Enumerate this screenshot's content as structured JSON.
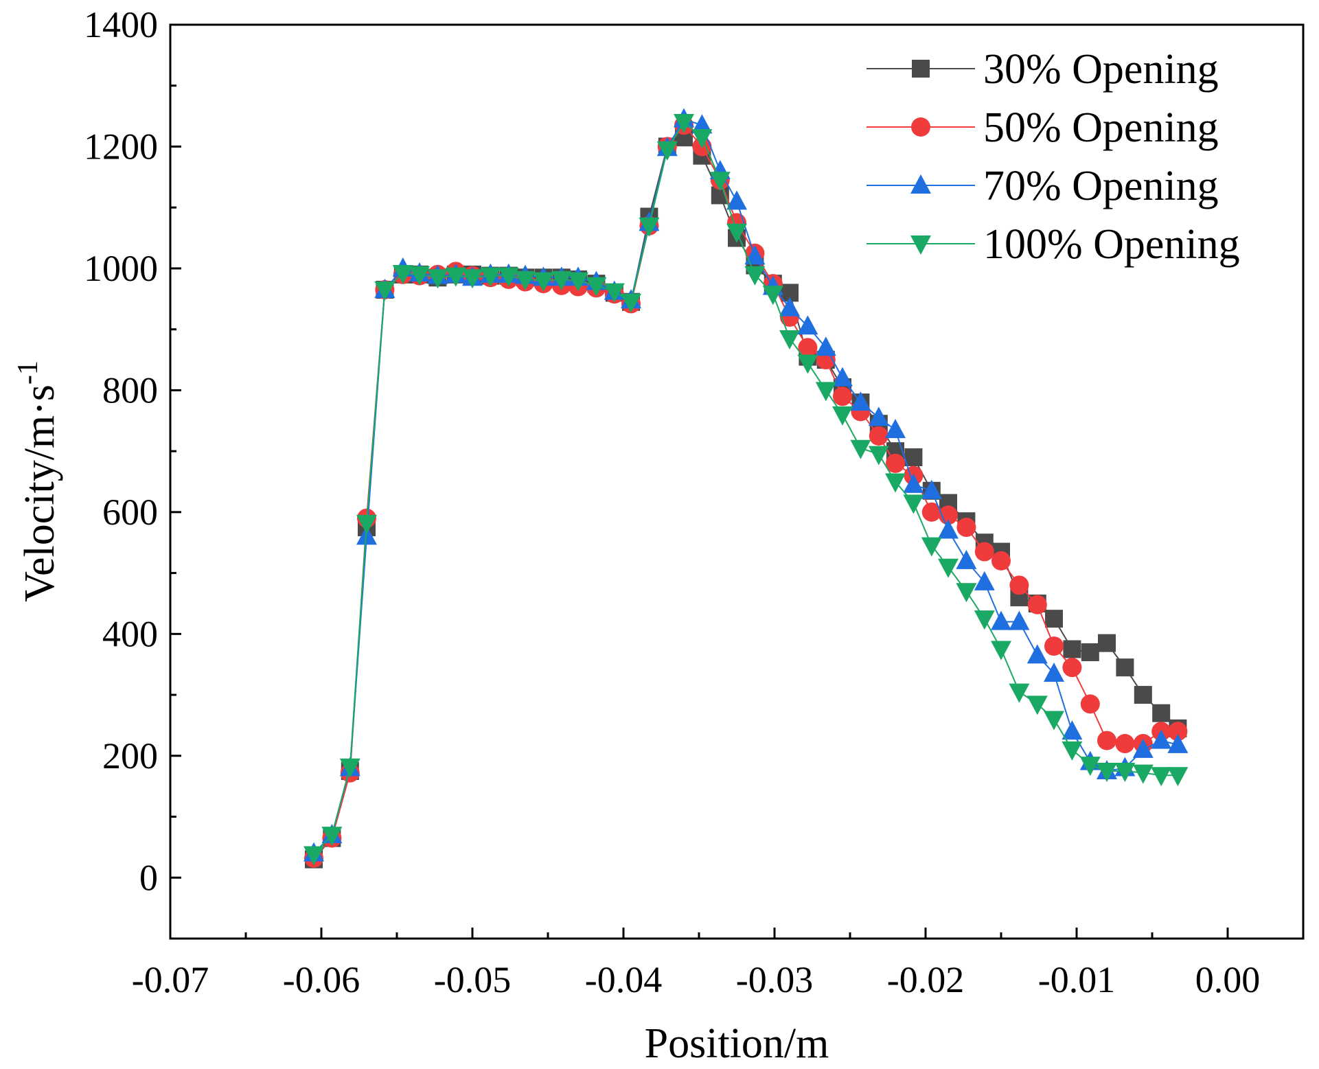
{
  "chart_data": {
    "type": "line",
    "title": "",
    "xlabel": "Position/m",
    "ylabel_main": "Velocity/m·s",
    "ylabel_sup": "-1",
    "xlim": [
      -0.07,
      0.005
    ],
    "ylim": [
      -100,
      1400
    ],
    "xticks": [
      -0.07,
      -0.06,
      -0.05,
      -0.04,
      -0.03,
      -0.02,
      -0.01,
      0.0
    ],
    "xtick_labels": [
      "-0.07",
      "-0.06",
      "-0.05",
      "-0.04",
      "-0.03",
      "-0.02",
      "-0.01",
      "0.00"
    ],
    "yticks": [
      0,
      200,
      400,
      600,
      800,
      1000,
      1200,
      1400
    ],
    "ytick_labels": [
      "0",
      "200",
      "400",
      "600",
      "800",
      "1000",
      "1200",
      "1400"
    ],
    "legend_position": "top-right",
    "x": [
      -0.0605,
      -0.0593,
      -0.0581,
      -0.057,
      -0.0558,
      -0.0546,
      -0.0535,
      -0.0523,
      -0.0511,
      -0.05,
      -0.0488,
      -0.0476,
      -0.0465,
      -0.0453,
      -0.0441,
      -0.043,
      -0.0418,
      -0.0406,
      -0.0395,
      -0.0383,
      -0.0371,
      -0.036,
      -0.0348,
      -0.0336,
      -0.0325,
      -0.0313,
      -0.0301,
      -0.029,
      -0.0278,
      -0.0266,
      -0.0255,
      -0.0243,
      -0.0231,
      -0.022,
      -0.0208,
      -0.0196,
      -0.0185,
      -0.0173,
      -0.0161,
      -0.015,
      -0.0138,
      -0.0126,
      -0.0115,
      -0.0103,
      -0.0091,
      -0.008,
      -0.0068,
      -0.0056,
      -0.0044,
      -0.0033
    ],
    "series": [
      {
        "name": "30% Opening",
        "color": "#4a4a4a",
        "marker": "square",
        "values": [
          30,
          65,
          175,
          575,
          965,
          990,
          990,
          985,
          990,
          990,
          988,
          988,
          985,
          985,
          985,
          982,
          975,
          960,
          945,
          1085,
          1200,
          1215,
          1185,
          1120,
          1050,
          1005,
          975,
          960,
          855,
          850,
          805,
          780,
          745,
          700,
          690,
          635,
          615,
          585,
          550,
          535,
          460,
          450,
          425,
          375,
          370,
          385,
          345,
          300,
          270,
          245
        ]
      },
      {
        "name": "50% Opening",
        "color": "#ef3b3b",
        "marker": "circle",
        "values": [
          32,
          65,
          172,
          590,
          965,
          990,
          988,
          990,
          995,
          988,
          985,
          982,
          978,
          975,
          972,
          970,
          968,
          958,
          942,
          1070,
          1200,
          1235,
          1200,
          1145,
          1075,
          1025,
          975,
          920,
          870,
          850,
          790,
          765,
          725,
          680,
          660,
          600,
          595,
          575,
          535,
          520,
          480,
          448,
          380,
          345,
          285,
          225,
          220,
          220,
          240,
          240
        ]
      },
      {
        "name": "70% Opening",
        "color": "#1f6fe0",
        "marker": "triangle-up",
        "values": [
          40,
          70,
          180,
          560,
          965,
          1000,
          992,
          988,
          990,
          985,
          990,
          990,
          988,
          985,
          985,
          985,
          978,
          962,
          948,
          1075,
          1198,
          1245,
          1235,
          1160,
          1110,
          1020,
          970,
          935,
          905,
          870,
          820,
          780,
          755,
          735,
          645,
          635,
          570,
          520,
          485,
          420,
          420,
          365,
          335,
          240,
          190,
          175,
          180,
          210,
          225,
          218
        ]
      },
      {
        "name": "100% Opening",
        "color": "#1aa964",
        "marker": "triangle-down",
        "values": [
          38,
          70,
          182,
          582,
          965,
          992,
          990,
          985,
          988,
          985,
          988,
          988,
          982,
          980,
          982,
          980,
          972,
          962,
          945,
          1070,
          1195,
          1240,
          1215,
          1145,
          1060,
          990,
          958,
          885,
          845,
          800,
          760,
          705,
          695,
          650,
          615,
          545,
          510,
          470,
          425,
          375,
          305,
          285,
          260,
          210,
          185,
          175,
          175,
          172,
          168,
          168
        ]
      }
    ]
  }
}
